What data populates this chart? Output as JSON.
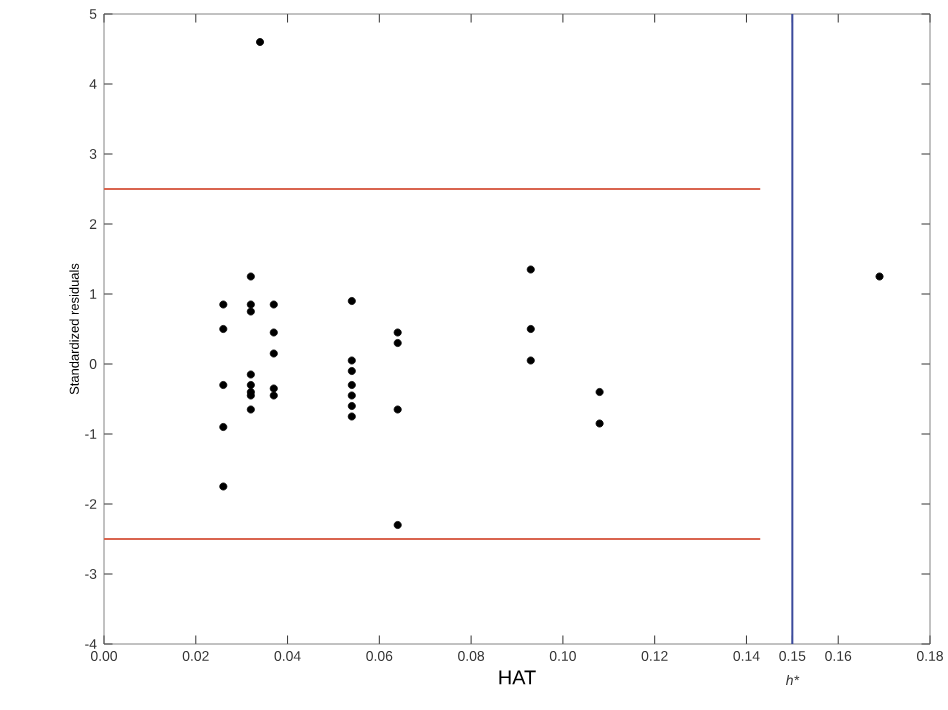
{
  "chart_data": {
    "type": "scatter",
    "xlabel": "HAT",
    "ylabel": "Standardized residuals",
    "xlim": [
      0,
      0.18
    ],
    "ylim": [
      -4,
      5
    ],
    "xticks": [
      {
        "value": 0,
        "label": "0.00"
      },
      {
        "value": 0.02,
        "label": "0.02"
      },
      {
        "value": 0.04,
        "label": "0.04"
      },
      {
        "value": 0.06,
        "label": "0.06"
      },
      {
        "value": 0.08,
        "label": "0.08"
      },
      {
        "value": 0.1,
        "label": "0.10"
      },
      {
        "value": 0.12,
        "label": "0.12"
      },
      {
        "value": 0.14,
        "label": "0.14"
      },
      {
        "value": 0.15,
        "label": "0.15"
      },
      {
        "value": 0.16,
        "label": "0.16"
      },
      {
        "value": 0.18,
        "label": "0.18"
      }
    ],
    "yticks": [
      -4,
      -3,
      -2,
      -1,
      0,
      1,
      2,
      3,
      4,
      5
    ],
    "grid": false,
    "series": [
      {
        "marker": "circle",
        "color": "#000000",
        "x": [
          0.026,
          0.026,
          0.026,
          0.026,
          0.026,
          0.032,
          0.032,
          0.032,
          0.032,
          0.032,
          0.032,
          0.032,
          0.032,
          0.034,
          0.037,
          0.037,
          0.037,
          0.037,
          0.037,
          0.054,
          0.054,
          0.054,
          0.054,
          0.054,
          0.054,
          0.054,
          0.064,
          0.064,
          0.064,
          0.064,
          0.093,
          0.093,
          0.093,
          0.108,
          0.108,
          0.169
        ],
        "values": [
          0.85,
          0.5,
          -0.3,
          -0.9,
          -1.75,
          1.25,
          0.85,
          0.75,
          -0.15,
          -0.3,
          -0.4,
          -0.45,
          -0.65,
          4.6,
          0.85,
          0.45,
          0.15,
          -0.35,
          -0.45,
          0.9,
          0.05,
          -0.1,
          -0.3,
          -0.45,
          -0.6,
          -0.75,
          0.45,
          0.3,
          -0.65,
          -2.3,
          1.35,
          0.5,
          0.05,
          -0.4,
          -0.85,
          1.25
        ]
      },
      {
        "type": "line",
        "marker": "none",
        "color": "#d9644f",
        "x": [
          0,
          0.143
        ],
        "values": [
          2.5,
          2.5
        ]
      },
      {
        "type": "line",
        "marker": "none",
        "color": "#d9644f",
        "x": [
          0,
          0.143
        ],
        "values": [
          -2.5,
          -2.5
        ]
      }
    ],
    "ref_lines": [
      {
        "axis": "x",
        "value": 0.15,
        "label": "h*",
        "color": "#3b4a9c"
      }
    ]
  }
}
